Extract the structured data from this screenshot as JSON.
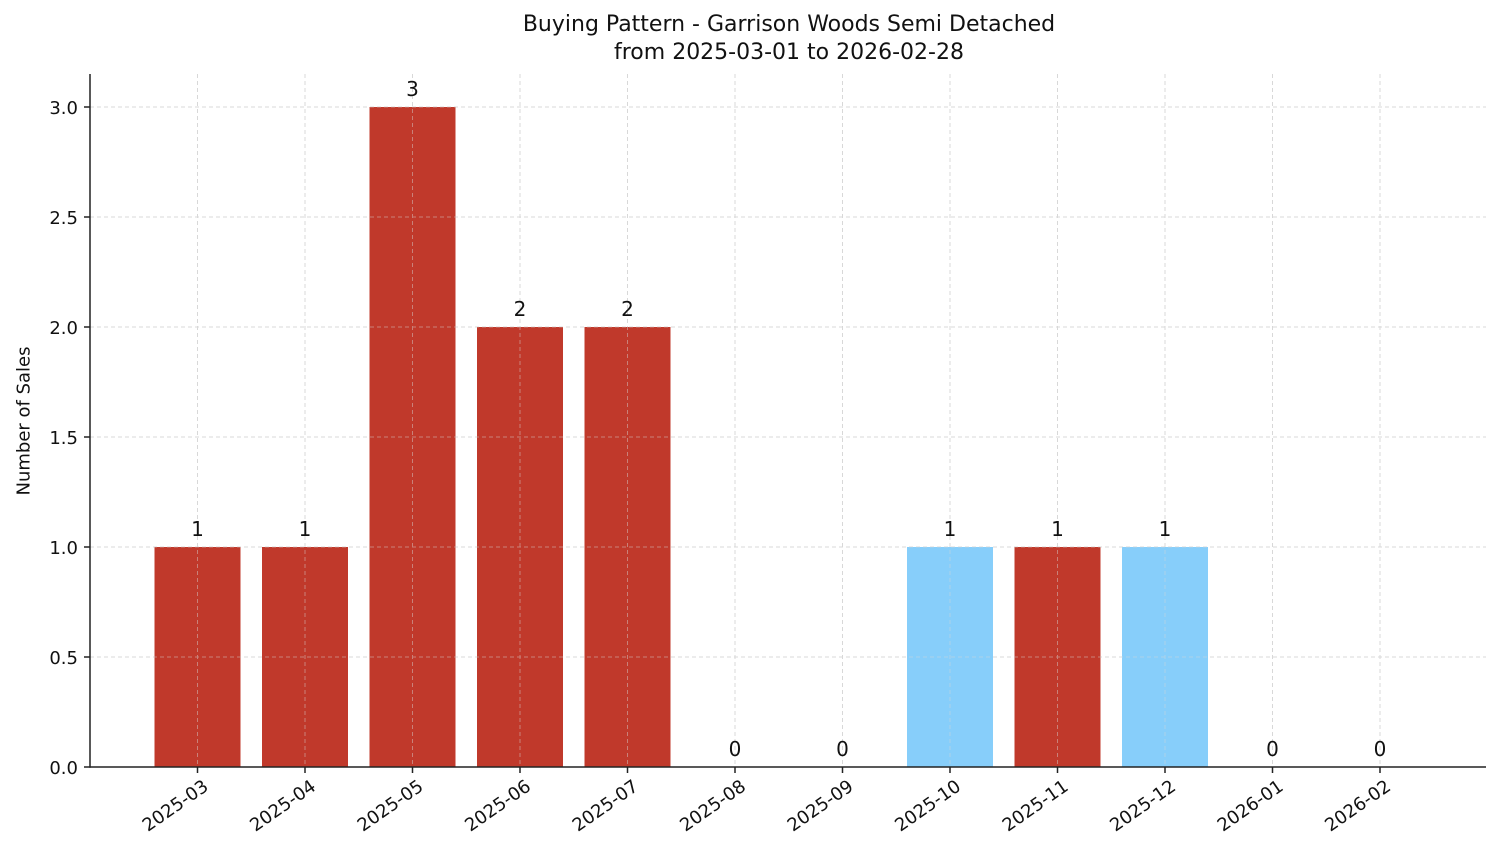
{
  "chart_data": {
    "type": "bar",
    "title": "Buying Pattern - Garrison Woods Semi Detached",
    "subtitle": "from 2025-03-01 to 2026-02-28",
    "xlabel": "",
    "ylabel": "Number of Sales",
    "categories": [
      "2025-03",
      "2025-04",
      "2025-05",
      "2025-06",
      "2025-07",
      "2025-08",
      "2025-09",
      "2025-10",
      "2025-11",
      "2025-12",
      "2026-01",
      "2026-02"
    ],
    "values": [
      1,
      1,
      3,
      2,
      2,
      0,
      0,
      1,
      1,
      1,
      0,
      0
    ],
    "bar_colors": [
      "#c0392b",
      "#c0392b",
      "#c0392b",
      "#c0392b",
      "#c0392b",
      "#c0392b",
      "#c0392b",
      "#87cefa",
      "#c0392b",
      "#87cefa",
      "#c0392b",
      "#c0392b"
    ],
    "data_labels": [
      "1",
      "1",
      "3",
      "2",
      "2",
      "0",
      "0",
      "1",
      "1",
      "1",
      "0",
      "0"
    ],
    "ylim": [
      0,
      3.15
    ],
    "yticks": [
      0.0,
      0.5,
      1.0,
      1.5,
      2.0,
      2.5,
      3.0
    ],
    "ytick_labels": [
      "0.0",
      "0.5",
      "1.0",
      "1.5",
      "2.0",
      "2.5",
      "3.0"
    ],
    "grid": true,
    "legend": null
  },
  "colors": {
    "primary_bar": "#c0392b",
    "highlight_bar": "#87cefa",
    "grid": "#d8d8d8",
    "axis": "#222222"
  }
}
